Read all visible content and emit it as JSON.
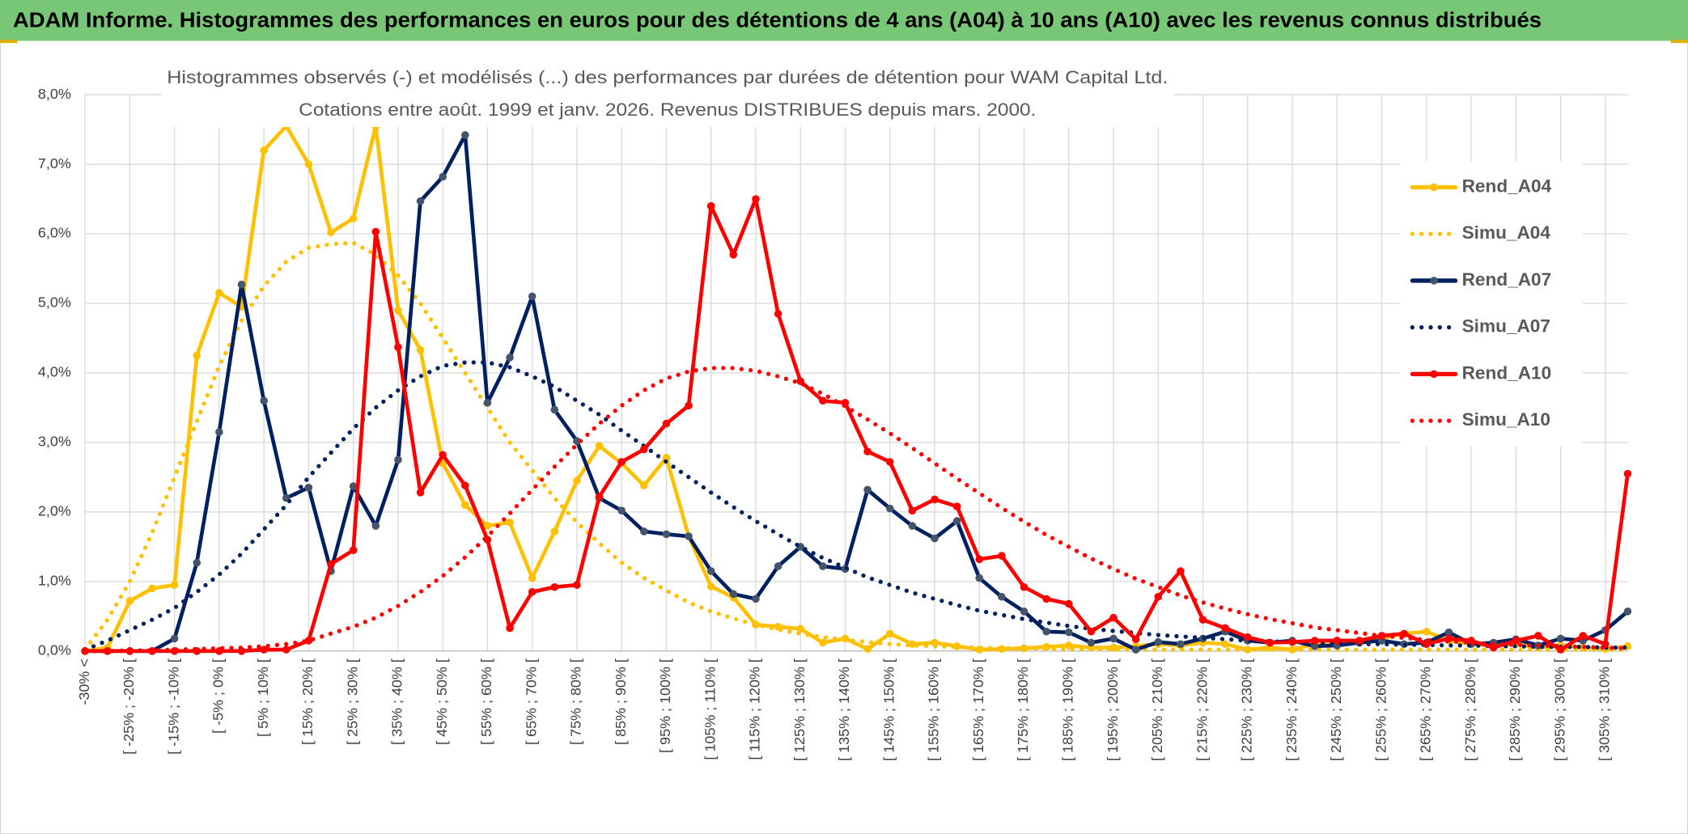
{
  "chart_data": {
    "type": "line",
    "title": "ADAM Informe. Histogrammes des performances en euros pour des détentions de 4 ans (A04) à 10 ans (A10) avec les revenus connus distribués",
    "subtitle": [
      "Histogrammes observés (-) et modélisés (...) des performances par durées de détention pour WAM Capital Ltd.",
      "Cotations entre août. 1999 et janv. 2026. Revenus DISTRIBUES depuis mars. 2000."
    ],
    "categories": [
      "-30% <",
      null,
      "[ -25% ; -20% [",
      null,
      "[ -15% ; -10% [",
      null,
      "[ -5% ; 0% [",
      null,
      "[ 5% ; 10% [",
      null,
      "[ 15% ; 20% [",
      null,
      "[ 25% ; 30% [",
      null,
      "[ 35% ; 40% [",
      null,
      "[ 45% ; 50% [",
      null,
      "[ 55% ; 60% [",
      null,
      "[ 65% ; 70% [",
      null,
      "[ 75% ; 80% [",
      null,
      "[ 85% ; 90% [",
      null,
      "[ 95% ; 100% [",
      null,
      "[ 105% ; 110% [",
      null,
      "[ 115% ; 120% [",
      null,
      "[ 125% ; 130% [",
      null,
      "[ 135% ; 140% [",
      null,
      "[ 145% ; 150% [",
      null,
      "[ 155% ; 160% [",
      null,
      "[ 165% ; 170% [",
      null,
      "[ 175% ; 180% [",
      null,
      "[ 185% ; 190% [",
      null,
      "[ 195% ; 200% [",
      null,
      "[ 205% ; 210% [",
      null,
      "[ 215% ; 220% [",
      null,
      "[ 225% ; 230% [",
      null,
      "[ 235% ; 240% [",
      null,
      "[ 245% ; 250% [",
      null,
      "[ 255% ; 260% [",
      null,
      "[ 265% ; 270% [",
      null,
      "[ 275% ; 280% [",
      null,
      "[ 285% ; 290% [",
      null,
      "[ 295% ; 300% [",
      null,
      "[ 305% ; 310% [",
      null
    ],
    "series": [
      {
        "name": "Rend_A04",
        "color": "#FFC000",
        "style": "solid",
        "values": [
          0,
          0.05,
          0.72,
          0.9,
          0.95,
          4.25,
          5.15,
          4.95,
          7.2,
          7.55,
          7.0,
          6.02,
          6.22,
          7.55,
          4.9,
          4.33,
          2.7,
          2.1,
          1.8,
          1.85,
          1.05,
          1.72,
          2.45,
          2.95,
          2.7,
          2.38,
          2.78,
          1.65,
          0.93,
          0.77,
          0.38,
          0.35,
          0.32,
          0.12,
          0.18,
          0.03,
          0.25,
          0.1,
          0.12,
          0.07,
          0.02,
          0.03,
          0.04,
          0.06,
          0.08,
          0.05,
          0.05,
          0.07,
          0.1,
          0.08,
          0.12,
          0.1,
          0.02,
          0.05,
          0.02,
          0.1,
          0.08,
          0.12,
          0.18,
          0.25,
          0.28,
          0.15,
          0.1,
          0.08,
          0.1,
          0.05,
          0.08,
          0.05,
          0.03,
          0.07
        ]
      },
      {
        "name": "Simu_A04",
        "color": "#FFC000",
        "style": "dotted",
        "values": [
          0.02,
          0.45,
          1.0,
          1.7,
          2.5,
          3.3,
          4.1,
          4.75,
          5.25,
          5.6,
          5.8,
          5.85,
          5.87,
          5.7,
          5.4,
          5.0,
          4.5,
          4.0,
          3.5,
          3.0,
          2.6,
          2.2,
          1.85,
          1.55,
          1.27,
          1.05,
          0.87,
          0.7,
          0.57,
          0.47,
          0.38,
          0.31,
          0.25,
          0.2,
          0.16,
          0.13,
          0.1,
          0.08,
          0.07,
          0.06,
          0.05,
          0.04,
          0.04,
          0.03,
          0.03,
          0.03,
          0.02,
          0.02,
          0.02,
          0.02,
          0.02,
          0.02,
          0.02,
          0.02,
          0.02,
          0.02,
          0.02,
          0.02,
          0.02,
          0.02,
          0.02,
          0.02,
          0.02,
          0.02,
          0.02,
          0.02,
          0.02,
          0.02,
          0.02,
          0.02
        ]
      },
      {
        "name": "Rend_A07",
        "color": "#002060",
        "style": "solid",
        "marker": "#44546A",
        "values": [
          0,
          0,
          0,
          0,
          0.18,
          1.27,
          3.15,
          5.27,
          3.6,
          2.2,
          2.35,
          1.15,
          2.37,
          1.8,
          2.75,
          6.47,
          6.82,
          7.42,
          3.57,
          4.22,
          5.1,
          3.47,
          3.02,
          2.2,
          2.02,
          1.72,
          1.68,
          1.65,
          1.15,
          0.82,
          0.75,
          1.22,
          1.5,
          1.22,
          1.18,
          2.32,
          2.05,
          1.8,
          1.62,
          1.87,
          1.05,
          0.78,
          0.57,
          0.28,
          0.27,
          0.12,
          0.18,
          0.02,
          0.13,
          0.1,
          0.18,
          0.28,
          0.15,
          0.12,
          0.15,
          0.07,
          0.08,
          0.12,
          0.15,
          0.1,
          0.12,
          0.27,
          0.1,
          0.12,
          0.17,
          0.08,
          0.18,
          0.15,
          0.3,
          0.57
        ]
      },
      {
        "name": "Simu_A07",
        "color": "#002060",
        "style": "dotted",
        "values": [
          0.02,
          0.15,
          0.3,
          0.45,
          0.62,
          0.85,
          1.1,
          1.4,
          1.75,
          2.1,
          2.5,
          2.85,
          3.2,
          3.5,
          3.75,
          3.95,
          4.1,
          4.15,
          4.15,
          4.08,
          3.95,
          3.8,
          3.6,
          3.4,
          3.17,
          2.95,
          2.72,
          2.5,
          2.28,
          2.07,
          1.87,
          1.68,
          1.5,
          1.34,
          1.2,
          1.06,
          0.95,
          0.84,
          0.75,
          0.66,
          0.58,
          0.52,
          0.46,
          0.41,
          0.36,
          0.32,
          0.29,
          0.26,
          0.23,
          0.21,
          0.19,
          0.17,
          0.15,
          0.14,
          0.13,
          0.12,
          0.11,
          0.1,
          0.1,
          0.09,
          0.09,
          0.08,
          0.08,
          0.07,
          0.07,
          0.06,
          0.06,
          0.06,
          0.05,
          0.05
        ]
      },
      {
        "name": "Rend_A10",
        "color": "#FF0000",
        "style": "solid",
        "values": [
          0,
          0,
          0,
          0,
          0,
          0,
          0,
          0,
          0.02,
          0.02,
          0.15,
          1.25,
          1.45,
          6.03,
          4.37,
          2.28,
          2.82,
          2.38,
          1.6,
          0.33,
          0.85,
          0.92,
          0.95,
          2.22,
          2.72,
          2.9,
          3.27,
          3.53,
          6.4,
          5.7,
          6.5,
          4.85,
          3.88,
          3.6,
          3.57,
          2.87,
          2.72,
          2.02,
          2.18,
          2.08,
          1.32,
          1.37,
          0.92,
          0.75,
          0.68,
          0.28,
          0.48,
          0.17,
          0.78,
          1.15,
          0.45,
          0.33,
          0.2,
          0.12,
          0.13,
          0.15,
          0.15,
          0.15,
          0.22,
          0.25,
          0.1,
          0.18,
          0.15,
          0.05,
          0.15,
          0.22,
          0.02,
          0.22,
          0.1,
          2.55
        ]
      },
      {
        "name": "Simu_A10",
        "color": "#FF0000",
        "style": "dotted",
        "values": [
          0,
          0,
          0.01,
          0.01,
          0.02,
          0.03,
          0.04,
          0.05,
          0.07,
          0.1,
          0.15,
          0.25,
          0.35,
          0.48,
          0.65,
          0.85,
          1.08,
          1.35,
          1.65,
          1.98,
          2.32,
          2.65,
          2.97,
          3.27,
          3.53,
          3.75,
          3.92,
          4.02,
          4.07,
          4.07,
          4.03,
          3.95,
          3.85,
          3.7,
          3.52,
          3.33,
          3.13,
          2.92,
          2.7,
          2.48,
          2.27,
          2.06,
          1.86,
          1.67,
          1.5,
          1.33,
          1.18,
          1.04,
          0.92,
          0.8,
          0.7,
          0.61,
          0.53,
          0.46,
          0.4,
          0.34,
          0.3,
          0.26,
          0.22,
          0.19,
          0.16,
          0.14,
          0.12,
          0.1,
          0.09,
          0.08,
          0.07,
          0.06,
          0.05,
          0.04
        ]
      }
    ],
    "ylim": [
      0,
      8
    ],
    "yticks": [
      {
        "value": 0,
        "label": "0,0%"
      },
      {
        "value": 1,
        "label": "1,0%"
      },
      {
        "value": 2,
        "label": "2,0%"
      },
      {
        "value": 3,
        "label": "3,0%"
      },
      {
        "value": 4,
        "label": "4,0%"
      },
      {
        "value": 5,
        "label": "5,0%"
      },
      {
        "value": 6,
        "label": "6,0%"
      },
      {
        "value": 7,
        "label": "7,0%"
      },
      {
        "value": 8,
        "label": "8,0%"
      }
    ],
    "grid": true,
    "legend": "right"
  }
}
